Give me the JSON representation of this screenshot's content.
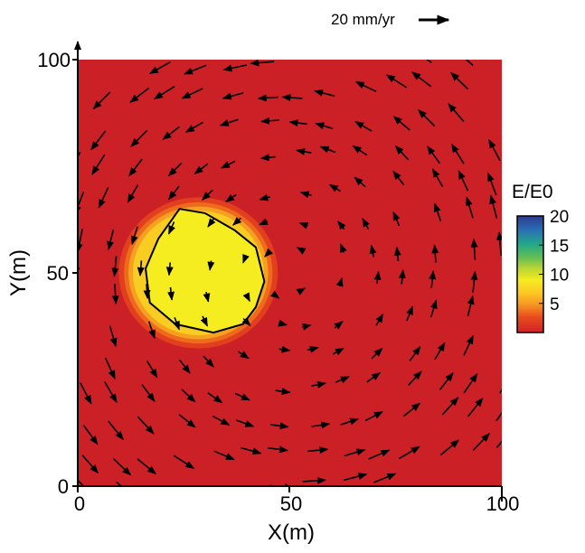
{
  "chart_data": {
    "type": "heatmap",
    "title": "",
    "xlabel": "X(m)",
    "ylabel": "Y(m)",
    "xlim": [
      0,
      100
    ],
    "ylim": [
      0,
      100
    ],
    "x_ticks": [
      "0",
      "50",
      "100"
    ],
    "y_ticks": [
      "0",
      "50",
      "100"
    ],
    "grid": false,
    "background_value": 2,
    "inclusion": {
      "center": [
        28,
        50
      ],
      "radius_m": 14,
      "value": 10,
      "boundary_polygon": [
        [
          24,
          65
        ],
        [
          30,
          64
        ],
        [
          37,
          60
        ],
        [
          42,
          56
        ],
        [
          44,
          48
        ],
        [
          42,
          42
        ],
        [
          39,
          38
        ],
        [
          32,
          36
        ],
        [
          23,
          38
        ],
        [
          17,
          43
        ],
        [
          16,
          51
        ],
        [
          19,
          58
        ]
      ]
    },
    "colorbar": {
      "title": "E/E0",
      "ticks": [
        "5",
        "10",
        "15",
        "20"
      ],
      "range": [
        0,
        20
      ],
      "placement": "right"
    },
    "vector_field": {
      "scale_label": "20 mm/yr",
      "pattern": "counterclockwise rotation about (50, 50)"
    },
    "colors": {
      "background": "#cc2027",
      "inclusion": "#f5ed1f",
      "boundary": "#000000",
      "arrows": "#000000"
    }
  }
}
